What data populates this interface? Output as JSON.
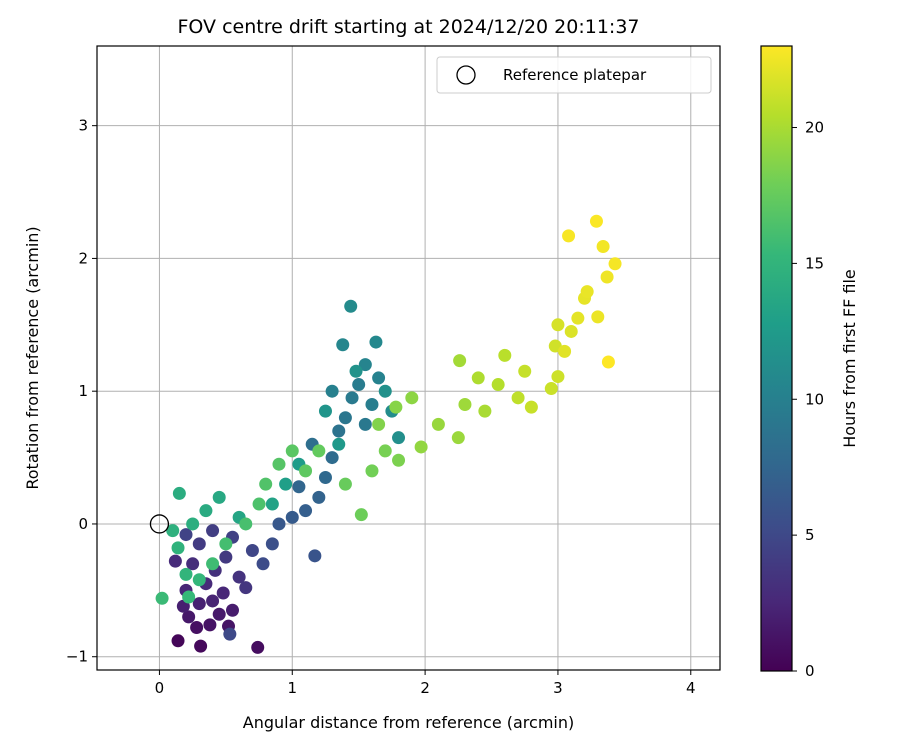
{
  "chart_data": {
    "type": "scatter",
    "title": "FOV centre drift starting at 2024/12/20 20:11:37",
    "xlabel": "Angular distance from reference (arcmin)",
    "ylabel": "Rotation from reference (arcmin)",
    "xlim": [
      -0.47,
      4.22
    ],
    "ylim": [
      -1.1,
      3.6
    ],
    "xticks": [
      0,
      1,
      2,
      3,
      4
    ],
    "yticks": [
      -1,
      0,
      1,
      2,
      3
    ],
    "grid": true,
    "legend": {
      "placement": "top-right",
      "entries": [
        "Reference platepar"
      ]
    },
    "reference_point": {
      "name": "Reference platepar",
      "x": 0,
      "y": 0
    },
    "colorbar": {
      "label": "Hours from first FF file",
      "colormap": "viridis",
      "range": [
        0,
        23
      ],
      "ticks": [
        0,
        5,
        10,
        15,
        20
      ]
    },
    "points": [
      {
        "x": 0.14,
        "y": -0.88,
        "h": 0.3
      },
      {
        "x": 0.31,
        "y": -0.92,
        "h": 0.5
      },
      {
        "x": 0.74,
        "y": -0.93,
        "h": 0.8
      },
      {
        "x": 0.28,
        "y": -0.78,
        "h": 1.0
      },
      {
        "x": 0.38,
        "y": -0.76,
        "h": 1.2
      },
      {
        "x": 0.52,
        "y": -0.77,
        "h": 1.3
      },
      {
        "x": 0.22,
        "y": -0.7,
        "h": 1.5
      },
      {
        "x": 0.45,
        "y": -0.68,
        "h": 1.6
      },
      {
        "x": 0.55,
        "y": -0.65,
        "h": 1.8
      },
      {
        "x": 0.18,
        "y": -0.62,
        "h": 2.0
      },
      {
        "x": 0.3,
        "y": -0.6,
        "h": 2.1
      },
      {
        "x": 0.4,
        "y": -0.58,
        "h": 2.3
      },
      {
        "x": 0.2,
        "y": -0.5,
        "h": 2.4
      },
      {
        "x": 0.48,
        "y": -0.52,
        "h": 2.5
      },
      {
        "x": 0.35,
        "y": -0.45,
        "h": 2.7
      },
      {
        "x": 0.12,
        "y": -0.28,
        "h": 2.8
      },
      {
        "x": 0.25,
        "y": -0.3,
        "h": 3.0
      },
      {
        "x": 0.42,
        "y": -0.35,
        "h": 3.2
      },
      {
        "x": 0.6,
        "y": -0.4,
        "h": 3.4
      },
      {
        "x": 0.65,
        "y": -0.48,
        "h": 3.6
      },
      {
        "x": 0.5,
        "y": -0.25,
        "h": 3.8
      },
      {
        "x": 0.3,
        "y": -0.15,
        "h": 4.0
      },
      {
        "x": 0.4,
        "y": -0.05,
        "h": 4.2
      },
      {
        "x": 0.55,
        "y": -0.1,
        "h": 4.4
      },
      {
        "x": 0.2,
        "y": -0.08,
        "h": 4.6
      },
      {
        "x": 0.7,
        "y": -0.2,
        "h": 4.8
      },
      {
        "x": 0.53,
        "y": -0.83,
        "h": 5.0
      },
      {
        "x": 0.78,
        "y": -0.3,
        "h": 5.3
      },
      {
        "x": 0.85,
        "y": -0.15,
        "h": 5.6
      },
      {
        "x": 1.17,
        "y": -0.24,
        "h": 6.0
      },
      {
        "x": 0.9,
        "y": 0.0,
        "h": 6.3
      },
      {
        "x": 1.0,
        "y": 0.05,
        "h": 6.6
      },
      {
        "x": 1.1,
        "y": 0.1,
        "h": 6.9
      },
      {
        "x": 1.2,
        "y": 0.2,
        "h": 7.2
      },
      {
        "x": 1.05,
        "y": 0.28,
        "h": 7.5
      },
      {
        "x": 1.25,
        "y": 0.35,
        "h": 7.8
      },
      {
        "x": 1.3,
        "y": 0.5,
        "h": 8.1
      },
      {
        "x": 1.15,
        "y": 0.6,
        "h": 8.4
      },
      {
        "x": 1.35,
        "y": 0.7,
        "h": 8.7
      },
      {
        "x": 1.4,
        "y": 0.8,
        "h": 9.0
      },
      {
        "x": 1.55,
        "y": 0.75,
        "h": 9.2
      },
      {
        "x": 1.45,
        "y": 0.95,
        "h": 9.4
      },
      {
        "x": 1.5,
        "y": 1.05,
        "h": 9.6
      },
      {
        "x": 1.6,
        "y": 0.9,
        "h": 9.8
      },
      {
        "x": 1.3,
        "y": 1.0,
        "h": 10.0
      },
      {
        "x": 1.65,
        "y": 1.1,
        "h": 10.2
      },
      {
        "x": 1.55,
        "y": 1.2,
        "h": 10.4
      },
      {
        "x": 1.38,
        "y": 1.35,
        "h": 10.6
      },
      {
        "x": 1.63,
        "y": 1.37,
        "h": 10.8
      },
      {
        "x": 1.44,
        "y": 1.64,
        "h": 11.0
      },
      {
        "x": 1.75,
        "y": 0.85,
        "h": 11.2
      },
      {
        "x": 1.8,
        "y": 0.65,
        "h": 11.4
      },
      {
        "x": 1.7,
        "y": 1.0,
        "h": 11.6
      },
      {
        "x": 1.48,
        "y": 1.15,
        "h": 11.8
      },
      {
        "x": 1.25,
        "y": 0.85,
        "h": 12.0
      },
      {
        "x": 1.35,
        "y": 0.6,
        "h": 12.3
      },
      {
        "x": 1.05,
        "y": 0.45,
        "h": 12.6
      },
      {
        "x": 0.95,
        "y": 0.3,
        "h": 12.9
      },
      {
        "x": 0.85,
        "y": 0.15,
        "h": 13.2
      },
      {
        "x": 0.6,
        "y": 0.05,
        "h": 13.5
      },
      {
        "x": 0.45,
        "y": 0.2,
        "h": 13.8
      },
      {
        "x": 0.35,
        "y": 0.1,
        "h": 14.0
      },
      {
        "x": 0.15,
        "y": 0.23,
        "h": 14.2
      },
      {
        "x": 0.25,
        "y": 0.0,
        "h": 14.4
      },
      {
        "x": 0.1,
        "y": -0.05,
        "h": 14.6
      },
      {
        "x": 0.14,
        "y": -0.18,
        "h": 14.8
      },
      {
        "x": 0.2,
        "y": -0.38,
        "h": 15.0
      },
      {
        "x": 0.3,
        "y": -0.42,
        "h": 15.2
      },
      {
        "x": 0.22,
        "y": -0.55,
        "h": 15.4
      },
      {
        "x": 0.02,
        "y": -0.56,
        "h": 15.6
      },
      {
        "x": 0.4,
        "y": -0.3,
        "h": 15.8
      },
      {
        "x": 0.5,
        "y": -0.15,
        "h": 16.0
      },
      {
        "x": 0.65,
        "y": 0.0,
        "h": 16.2
      },
      {
        "x": 0.75,
        "y": 0.15,
        "h": 16.4
      },
      {
        "x": 0.8,
        "y": 0.3,
        "h": 16.6
      },
      {
        "x": 0.9,
        "y": 0.45,
        "h": 16.8
      },
      {
        "x": 1.0,
        "y": 0.55,
        "h": 17.0
      },
      {
        "x": 1.1,
        "y": 0.4,
        "h": 17.2
      },
      {
        "x": 1.2,
        "y": 0.55,
        "h": 17.4
      },
      {
        "x": 1.4,
        "y": 0.3,
        "h": 17.6
      },
      {
        "x": 1.52,
        "y": 0.07,
        "h": 17.8
      },
      {
        "x": 1.6,
        "y": 0.4,
        "h": 18.0
      },
      {
        "x": 1.7,
        "y": 0.55,
        "h": 18.2
      },
      {
        "x": 1.8,
        "y": 0.48,
        "h": 18.4
      },
      {
        "x": 1.65,
        "y": 0.75,
        "h": 18.6
      },
      {
        "x": 1.78,
        "y": 0.88,
        "h": 18.8
      },
      {
        "x": 1.9,
        "y": 0.95,
        "h": 19.0
      },
      {
        "x": 1.97,
        "y": 0.58,
        "h": 19.2
      },
      {
        "x": 2.1,
        "y": 0.75,
        "h": 19.4
      },
      {
        "x": 2.25,
        "y": 0.65,
        "h": 19.5
      },
      {
        "x": 2.3,
        "y": 0.9,
        "h": 19.6
      },
      {
        "x": 2.26,
        "y": 1.23,
        "h": 19.8
      },
      {
        "x": 2.45,
        "y": 0.85,
        "h": 20.0
      },
      {
        "x": 2.4,
        "y": 1.1,
        "h": 20.2
      },
      {
        "x": 2.55,
        "y": 1.05,
        "h": 20.4
      },
      {
        "x": 2.6,
        "y": 1.27,
        "h": 20.6
      },
      {
        "x": 2.7,
        "y": 0.95,
        "h": 20.8
      },
      {
        "x": 2.75,
        "y": 1.15,
        "h": 21.0
      },
      {
        "x": 2.8,
        "y": 0.88,
        "h": 21.1
      },
      {
        "x": 2.95,
        "y": 1.02,
        "h": 21.2
      },
      {
        "x": 3.0,
        "y": 1.11,
        "h": 21.3
      },
      {
        "x": 2.98,
        "y": 1.34,
        "h": 21.4
      },
      {
        "x": 3.0,
        "y": 1.5,
        "h": 21.6
      },
      {
        "x": 3.1,
        "y": 1.45,
        "h": 21.8
      },
      {
        "x": 3.05,
        "y": 1.3,
        "h": 22.0
      },
      {
        "x": 3.15,
        "y": 1.55,
        "h": 22.1
      },
      {
        "x": 3.2,
        "y": 1.7,
        "h": 22.2
      },
      {
        "x": 3.22,
        "y": 1.75,
        "h": 22.3
      },
      {
        "x": 3.3,
        "y": 1.56,
        "h": 22.4
      },
      {
        "x": 3.37,
        "y": 1.86,
        "h": 22.5
      },
      {
        "x": 3.34,
        "y": 2.09,
        "h": 22.6
      },
      {
        "x": 3.43,
        "y": 1.96,
        "h": 22.7
      },
      {
        "x": 3.08,
        "y": 2.17,
        "h": 22.8
      },
      {
        "x": 3.29,
        "y": 2.28,
        "h": 22.9
      },
      {
        "x": 3.38,
        "y": 1.22,
        "h": 23.0
      }
    ]
  }
}
